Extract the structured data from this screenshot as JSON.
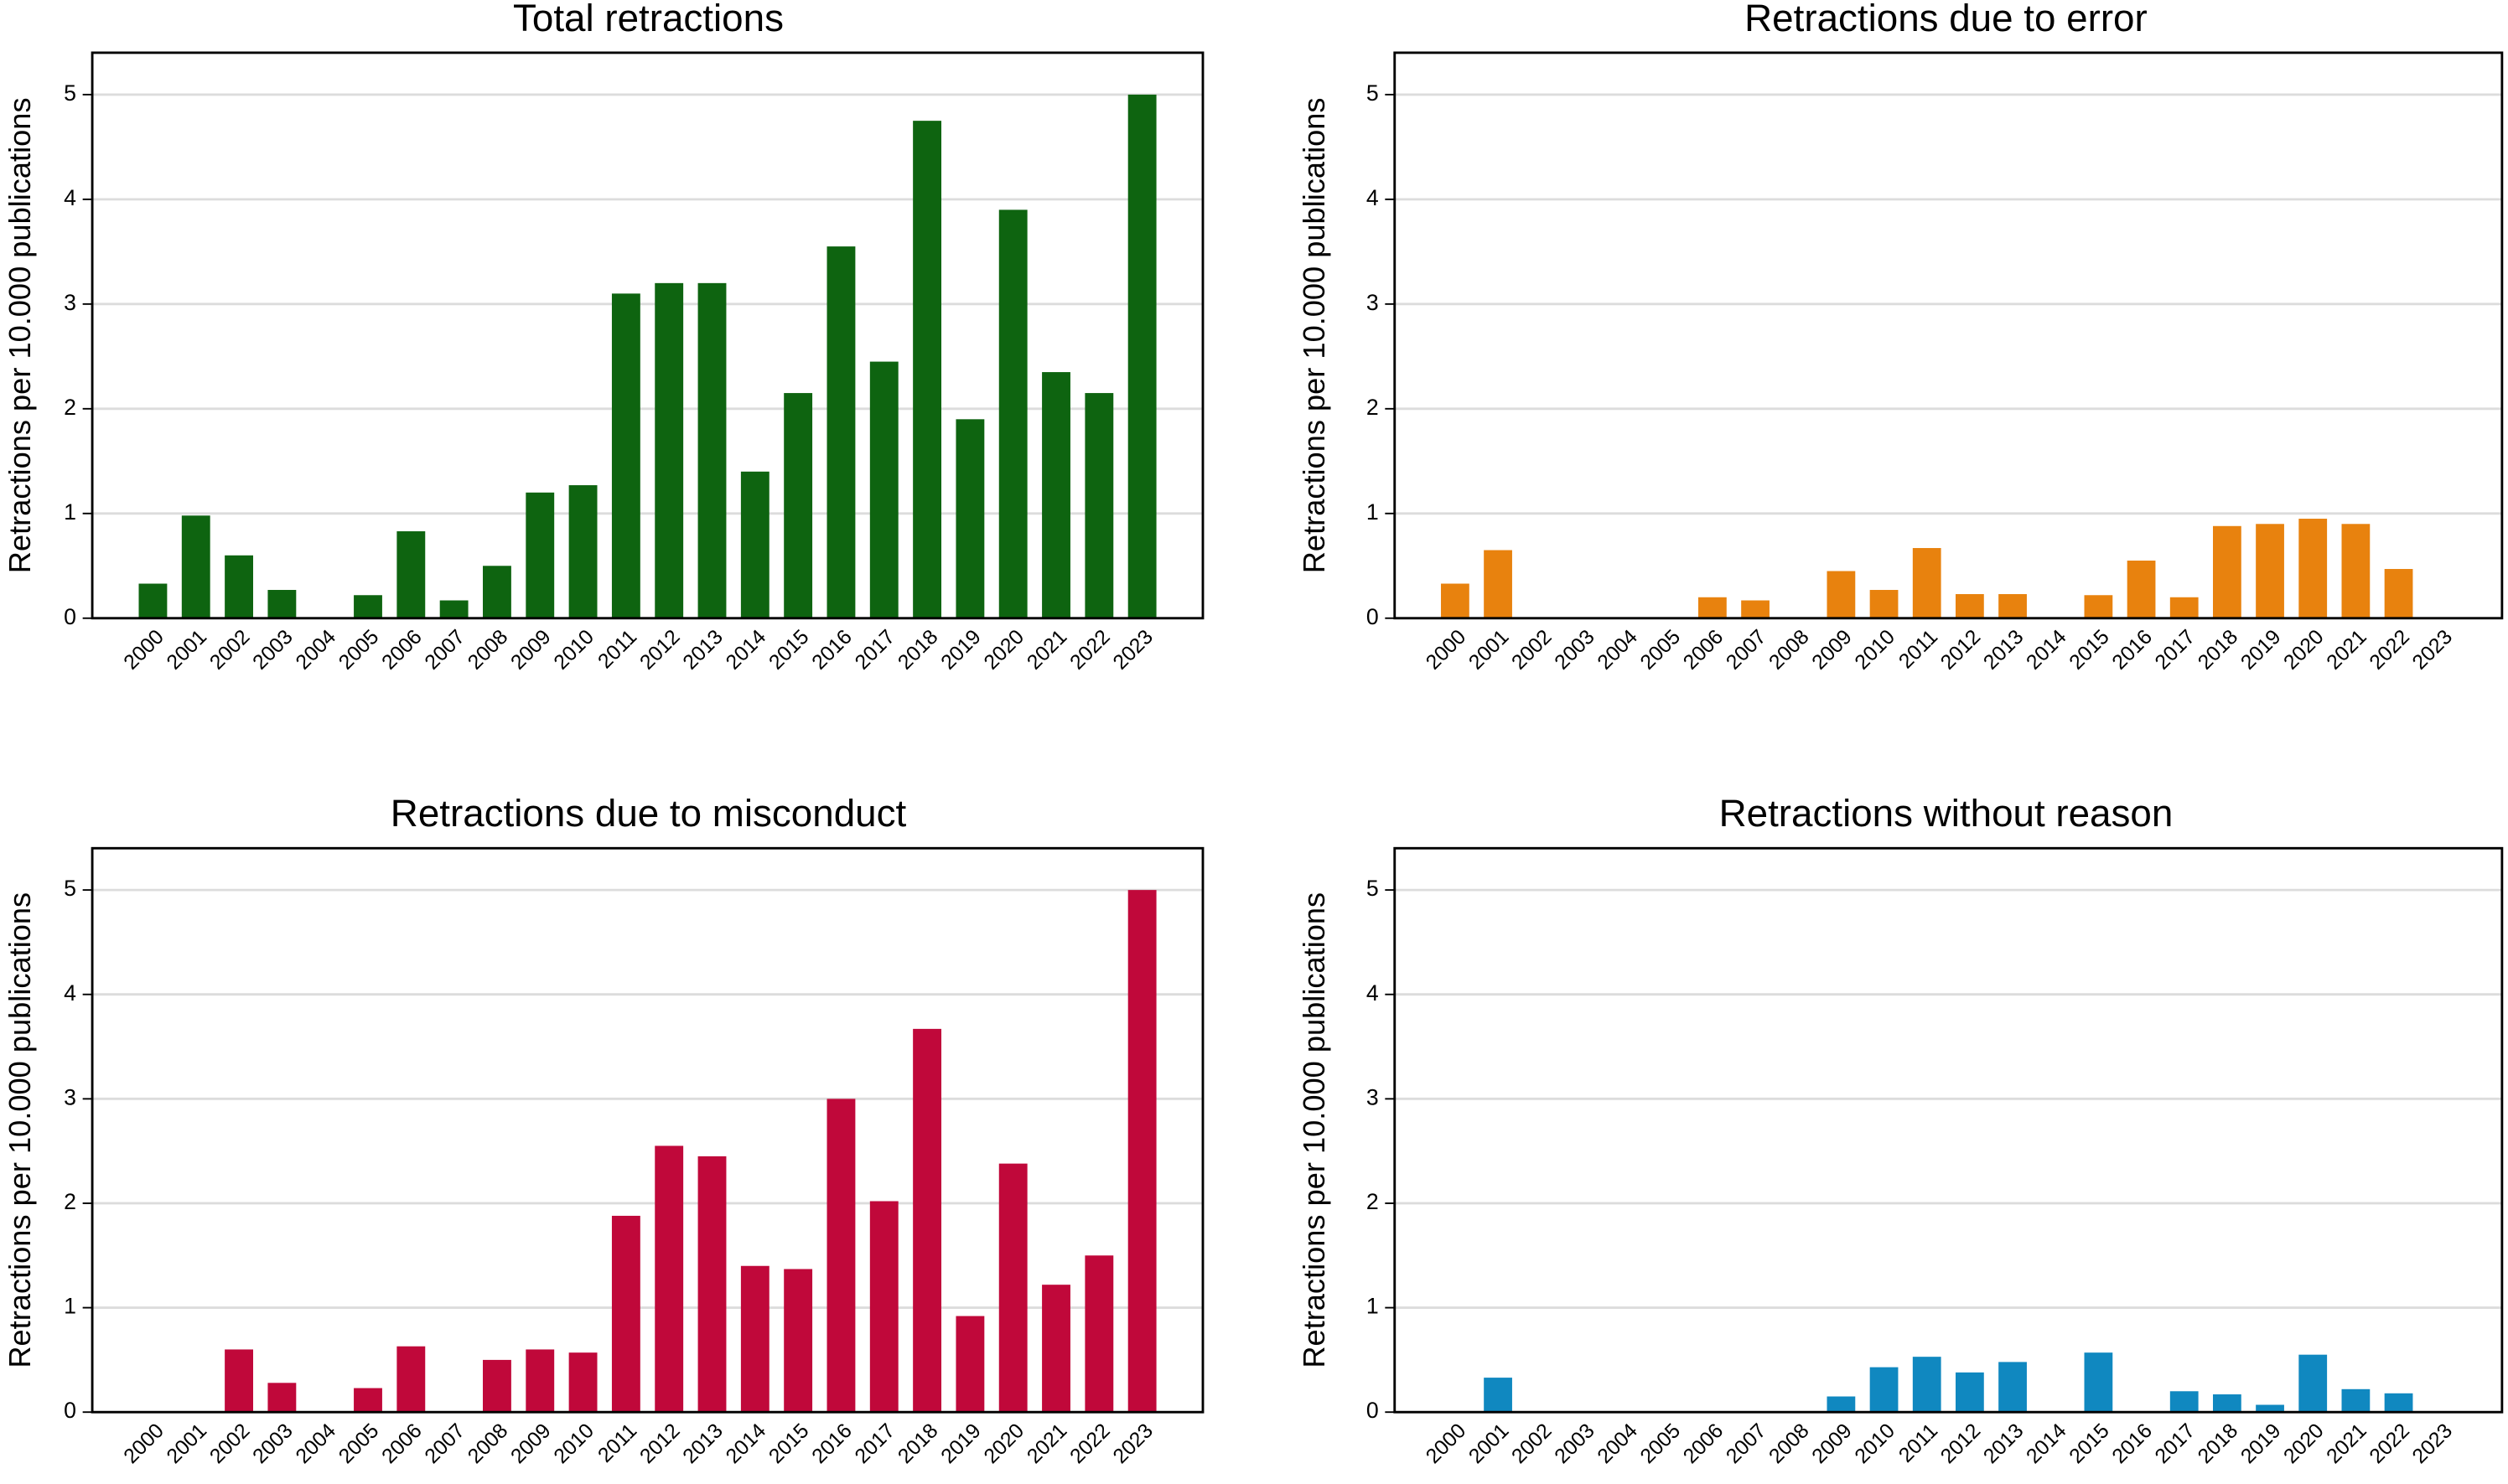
{
  "chart_data": [
    {
      "type": "bar",
      "title": "Total retractions",
      "ylabel": "Retractions per 10.000 publications",
      "categories": [
        "2000",
        "2001",
        "2002",
        "2003",
        "2004",
        "2005",
        "2006",
        "2007",
        "2008",
        "2009",
        "2010",
        "2011",
        "2012",
        "2013",
        "2014",
        "2015",
        "2016",
        "2017",
        "2018",
        "2019",
        "2020",
        "2021",
        "2022",
        "2023"
      ],
      "values": [
        0.33,
        0.98,
        0.6,
        0.27,
        0,
        0.22,
        0.83,
        0.17,
        0.5,
        1.2,
        1.27,
        3.1,
        3.2,
        3.2,
        1.4,
        2.15,
        3.55,
        2.45,
        4.75,
        1.9,
        3.9,
        2.35,
        2.15,
        5.0
      ],
      "color": "#0e6410",
      "ylim": [
        0,
        5.4
      ],
      "yticks": [
        0,
        1,
        2,
        3,
        4,
        5
      ],
      "grid": true
    },
    {
      "type": "bar",
      "title": "Retractions due to error",
      "ylabel": "Retractions per 10.000 publications",
      "categories": [
        "2000",
        "2001",
        "2002",
        "2003",
        "2004",
        "2005",
        "2006",
        "2007",
        "2008",
        "2009",
        "2010",
        "2011",
        "2012",
        "2013",
        "2014",
        "2015",
        "2016",
        "2017",
        "2018",
        "2019",
        "2020",
        "2021",
        "2022",
        "2023"
      ],
      "values": [
        0.33,
        0.65,
        0,
        0,
        0,
        0,
        0.2,
        0.17,
        0,
        0.45,
        0.27,
        0.67,
        0.23,
        0.23,
        0,
        0.22,
        0.55,
        0.2,
        0.88,
        0.9,
        0.95,
        0.9,
        0.47,
        0
      ],
      "color": "#e8820e",
      "ylim": [
        0,
        5.4
      ],
      "yticks": [
        0,
        1,
        2,
        3,
        4,
        5
      ],
      "grid": true
    },
    {
      "type": "bar",
      "title": "Retractions due to misconduct",
      "ylabel": "Retractions per 10.000 publications",
      "categories": [
        "2000",
        "2001",
        "2002",
        "2003",
        "2004",
        "2005",
        "2006",
        "2007",
        "2008",
        "2009",
        "2010",
        "2011",
        "2012",
        "2013",
        "2014",
        "2015",
        "2016",
        "2017",
        "2018",
        "2019",
        "2020",
        "2021",
        "2022",
        "2023"
      ],
      "values": [
        0,
        0,
        0.6,
        0.28,
        0,
        0.23,
        0.63,
        0,
        0.5,
        0.6,
        0.57,
        1.88,
        2.55,
        2.45,
        1.4,
        1.37,
        3.0,
        2.02,
        3.67,
        0.92,
        2.38,
        1.22,
        1.5,
        5.0
      ],
      "color": "#c0083a",
      "ylim": [
        0,
        5.4
      ],
      "yticks": [
        0,
        1,
        2,
        3,
        4,
        5
      ],
      "grid": true
    },
    {
      "type": "bar",
      "title": "Retractions without reason",
      "ylabel": "Retractions per 10.000 publications",
      "categories": [
        "2000",
        "2001",
        "2002",
        "2003",
        "2004",
        "2005",
        "2006",
        "2007",
        "2008",
        "2009",
        "2010",
        "2011",
        "2012",
        "2013",
        "2014",
        "2015",
        "2016",
        "2017",
        "2018",
        "2019",
        "2020",
        "2021",
        "2022",
        "2023"
      ],
      "values": [
        0,
        0.33,
        0,
        0,
        0,
        0,
        0,
        0,
        0,
        0.15,
        0.43,
        0.53,
        0.38,
        0.48,
        0,
        0.57,
        0,
        0.2,
        0.17,
        0.07,
        0.55,
        0.22,
        0.18,
        0
      ],
      "color": "#1088c0",
      "ylim": [
        0,
        5.4
      ],
      "yticks": [
        0,
        1,
        2,
        3,
        4,
        5
      ],
      "grid": true
    }
  ]
}
